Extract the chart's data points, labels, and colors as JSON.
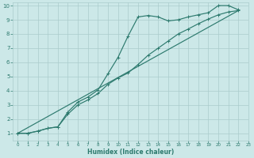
{
  "xlabel": "Humidex (Indice chaleur)",
  "bg_color": "#cce8e8",
  "grid_color": "#aacccc",
  "line_color": "#2d7a6e",
  "xlim": [
    -0.5,
    23
  ],
  "ylim": [
    0.5,
    10.2
  ],
  "xticks": [
    0,
    1,
    2,
    3,
    4,
    5,
    6,
    7,
    8,
    9,
    10,
    11,
    12,
    13,
    14,
    15,
    16,
    17,
    18,
    19,
    20,
    21,
    22,
    23
  ],
  "yticks": [
    1,
    2,
    3,
    4,
    5,
    6,
    7,
    8,
    9,
    10
  ],
  "line1_x": [
    0,
    1,
    2,
    3,
    4,
    5,
    6,
    7,
    8,
    9,
    10,
    11,
    12,
    13,
    14,
    15,
    16,
    17,
    18,
    19,
    20,
    21,
    22
  ],
  "line1_y": [
    1,
    1,
    1.15,
    1.35,
    1.45,
    2.5,
    3.2,
    3.55,
    4.05,
    5.2,
    6.35,
    7.85,
    9.2,
    9.3,
    9.2,
    8.92,
    9.0,
    9.2,
    9.35,
    9.5,
    10.0,
    10.0,
    9.7
  ],
  "line2_x": [
    0,
    1,
    2,
    3,
    4,
    5,
    6,
    7,
    8,
    9,
    10,
    11,
    12,
    13,
    14,
    15,
    16,
    17,
    18,
    19,
    20,
    21,
    22
  ],
  "line2_y": [
    1,
    1,
    1.15,
    1.35,
    1.45,
    2.35,
    3.0,
    3.35,
    3.8,
    4.45,
    4.9,
    5.25,
    5.85,
    6.5,
    7.0,
    7.5,
    8.0,
    8.35,
    8.72,
    9.05,
    9.35,
    9.55,
    9.65
  ],
  "line3_x": [
    0,
    22
  ],
  "line3_y": [
    1,
    9.65
  ]
}
